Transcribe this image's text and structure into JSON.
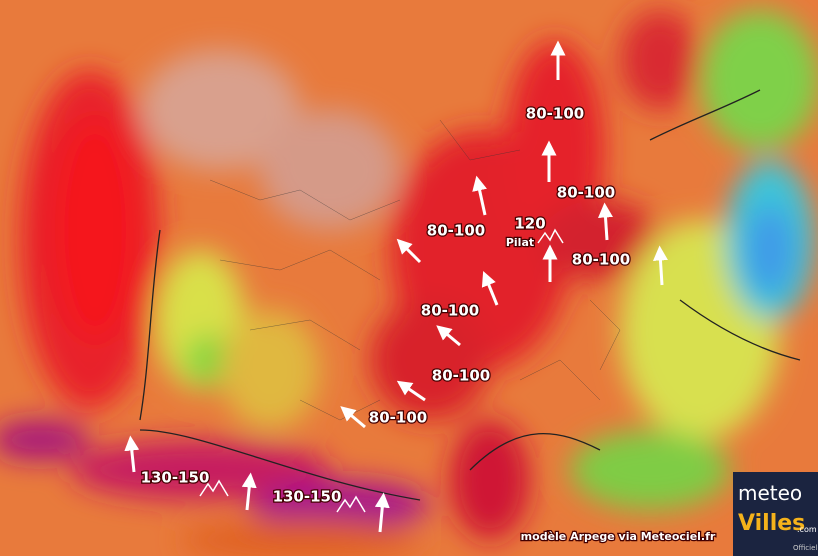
{
  "wind_labels": [
    "80-100",
    "80-100",
    "80-100",
    "80-100",
    "80-100",
    "80-100",
    "80-100"
  ],
  "peak": {
    "value": "120",
    "place": "Pilat"
  },
  "mountain_labels": [
    "130-150",
    "130-150"
  ],
  "credit": "modèle Arpege via Meteociel.fr",
  "logo": {
    "first": "meteo",
    "second": "Villes",
    "suffix": ".com",
    "tag": "Officiel"
  }
}
